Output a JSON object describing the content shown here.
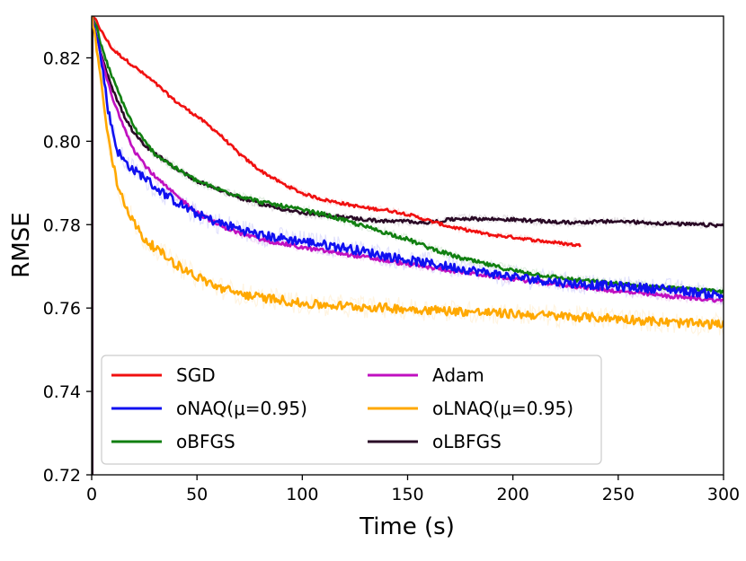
{
  "chart_data": {
    "type": "line",
    "title": "",
    "xlabel": "Time (s)",
    "ylabel": "RMSE",
    "xlim": [
      0,
      300
    ],
    "ylim": [
      0.72,
      0.83
    ],
    "xticks": [
      0,
      50,
      100,
      150,
      200,
      250,
      300
    ],
    "xtick_labels": [
      "0",
      "50",
      "100",
      "150",
      "200",
      "250",
      "300"
    ],
    "yticks": [
      0.72,
      0.74,
      0.76,
      0.78,
      0.8,
      0.82
    ],
    "ytick_labels": [
      "0.72",
      "0.74",
      "0.76",
      "0.78",
      "0.80",
      "0.82"
    ],
    "grid": false,
    "legend_position": "lower-left",
    "series": [
      {
        "name": "SGD",
        "color": "#f01010",
        "noise": 0.0003,
        "x": [
          0,
          2,
          5,
          10,
          20,
          30,
          40,
          50,
          60,
          70,
          80,
          90,
          100,
          110,
          120,
          130,
          140,
          150,
          160,
          170,
          180,
          190,
          200,
          210,
          220,
          232
        ],
        "values": [
          0.83,
          0.829,
          0.826,
          0.822,
          0.818,
          0.814,
          0.8095,
          0.806,
          0.802,
          0.797,
          0.793,
          0.79,
          0.7875,
          0.786,
          0.785,
          0.784,
          0.7835,
          0.7825,
          0.781,
          0.7795,
          0.7785,
          0.7775,
          0.777,
          0.7763,
          0.7757,
          0.775
        ]
      },
      {
        "name": "oNAQ(μ=0.95)",
        "color": "#1010f0",
        "noise": 0.0009,
        "x": [
          0,
          2,
          5,
          8,
          12,
          15,
          20,
          25,
          30,
          40,
          50,
          60,
          70,
          80,
          100,
          120,
          150,
          175,
          200,
          225,
          250,
          275,
          300
        ],
        "values": [
          0.83,
          0.827,
          0.818,
          0.807,
          0.798,
          0.7955,
          0.793,
          0.7915,
          0.789,
          0.7855,
          0.7825,
          0.7805,
          0.779,
          0.7775,
          0.776,
          0.7745,
          0.7715,
          0.7695,
          0.7675,
          0.766,
          0.7652,
          0.7645,
          0.763
        ]
      },
      {
        "name": "oBFGS",
        "color": "#107f10",
        "noise": 0.0004,
        "x": [
          0,
          2,
          5,
          10,
          15,
          20,
          25,
          30,
          40,
          50,
          60,
          70,
          80,
          90,
          100,
          110,
          120,
          130,
          140,
          150,
          160,
          175,
          200,
          225,
          250,
          275,
          300
        ],
        "values": [
          0.83,
          0.828,
          0.822,
          0.815,
          0.809,
          0.8035,
          0.8,
          0.797,
          0.7935,
          0.7905,
          0.7885,
          0.787,
          0.7855,
          0.7845,
          0.7835,
          0.7825,
          0.781,
          0.7795,
          0.778,
          0.7765,
          0.7745,
          0.772,
          0.769,
          0.767,
          0.7658,
          0.7648,
          0.7638
        ]
      },
      {
        "name": "Adam",
        "color": "#c010c0",
        "noise": 0.0004,
        "x": [
          0,
          2,
          5,
          10,
          15,
          20,
          25,
          30,
          40,
          50,
          60,
          70,
          80,
          100,
          120,
          150,
          175,
          200,
          225,
          250,
          275,
          300
        ],
        "values": [
          0.83,
          0.826,
          0.819,
          0.81,
          0.804,
          0.798,
          0.7945,
          0.7915,
          0.787,
          0.783,
          0.78,
          0.778,
          0.7765,
          0.7745,
          0.773,
          0.7705,
          0.7687,
          0.767,
          0.7655,
          0.764,
          0.7628,
          0.7618
        ]
      },
      {
        "name": "oLNAQ(μ=0.95)",
        "color": "#ffa800",
        "noise": 0.0009,
        "x": [
          0,
          2,
          5,
          8,
          12,
          15,
          20,
          25,
          30,
          40,
          50,
          60,
          70,
          80,
          90,
          100,
          120,
          150,
          175,
          200,
          225,
          250,
          275,
          300
        ],
        "values": [
          0.83,
          0.824,
          0.812,
          0.8,
          0.79,
          0.786,
          0.7805,
          0.7765,
          0.7745,
          0.7705,
          0.7675,
          0.765,
          0.7635,
          0.7625,
          0.762,
          0.761,
          0.7605,
          0.7598,
          0.7592,
          0.7586,
          0.758,
          0.7575,
          0.7565,
          0.756
        ]
      },
      {
        "name": "oLBFGS",
        "color": "#2a0a26",
        "noise": 0.00035,
        "x": [
          0,
          2,
          5,
          10,
          15,
          20,
          25,
          30,
          40,
          50,
          60,
          70,
          80,
          90,
          100,
          110,
          120,
          130,
          140,
          150,
          160,
          175,
          200,
          225,
          250,
          275,
          300
        ],
        "values": [
          0.83,
          0.826,
          0.82,
          0.8125,
          0.8065,
          0.802,
          0.799,
          0.797,
          0.7935,
          0.7905,
          0.7885,
          0.7865,
          0.785,
          0.7838,
          0.7828,
          0.7822,
          0.7818,
          0.7812,
          0.7808,
          0.7808,
          0.7805,
          0.7815,
          0.7812,
          0.7805,
          0.7808,
          0.7802,
          0.7798
        ]
      }
    ]
  }
}
